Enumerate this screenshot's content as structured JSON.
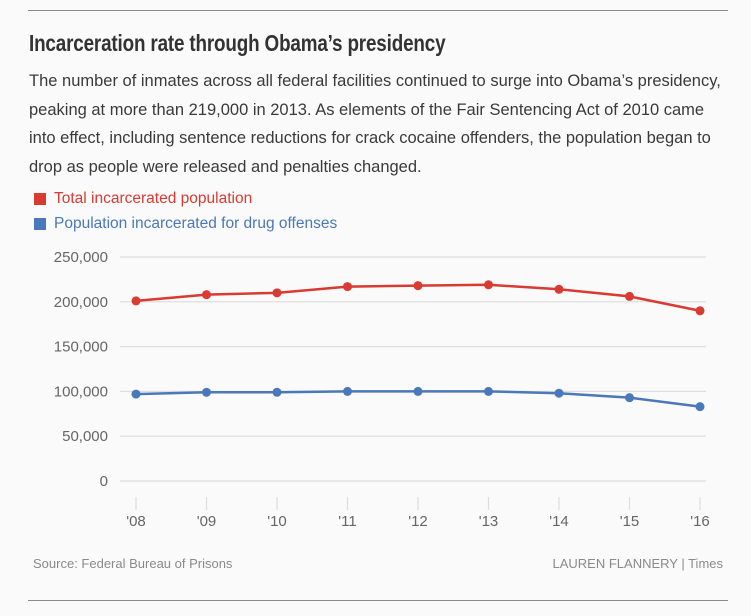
{
  "header": {
    "title": "Incarceration rate through Obama’s presidency",
    "description": "The number of inmates across all federal facilities continued to surge into Obama’s presidency, peaking at more than 219,000 in 2013. As elements of the Fair Sentencing Act of 2010 came into effect, including sentence reductions for crack cocaine offenders, the population began to drop as people were released and penalties changed."
  },
  "footer": {
    "source": "Source: Federal Bureau of Prisons",
    "credit": "LAUREN FLANNERY | Times"
  },
  "colors": {
    "total": "#d93a32",
    "drug": "#4a78b8",
    "grid": "#dddddd",
    "text": "#666666"
  },
  "chart_data": {
    "type": "line",
    "title": "Incarceration rate through Obama’s presidency",
    "xlabel": "",
    "ylabel": "",
    "categories": [
      "'08",
      "'09",
      "'10",
      "'11",
      "'12",
      "'13",
      "'14",
      "'15",
      "'16"
    ],
    "y_ticks": [
      0,
      50000,
      100000,
      150000,
      200000,
      250000
    ],
    "y_tick_labels": [
      "0",
      "50,000",
      "100,000",
      "150,000",
      "200,000",
      "250,000"
    ],
    "ylim": [
      0,
      250000
    ],
    "grid": true,
    "legend_position": "top-left",
    "series": [
      {
        "name": "Total incarcerated population",
        "color": "#d93a32",
        "values": [
          201000,
          208000,
          210000,
          217000,
          218000,
          219000,
          214000,
          206000,
          190000
        ]
      },
      {
        "name": "Population incarcerated for drug offenses",
        "color": "#4a78b8",
        "values": [
          97000,
          99000,
          99000,
          100000,
          100000,
          100000,
          98000,
          93000,
          83000
        ]
      }
    ]
  }
}
